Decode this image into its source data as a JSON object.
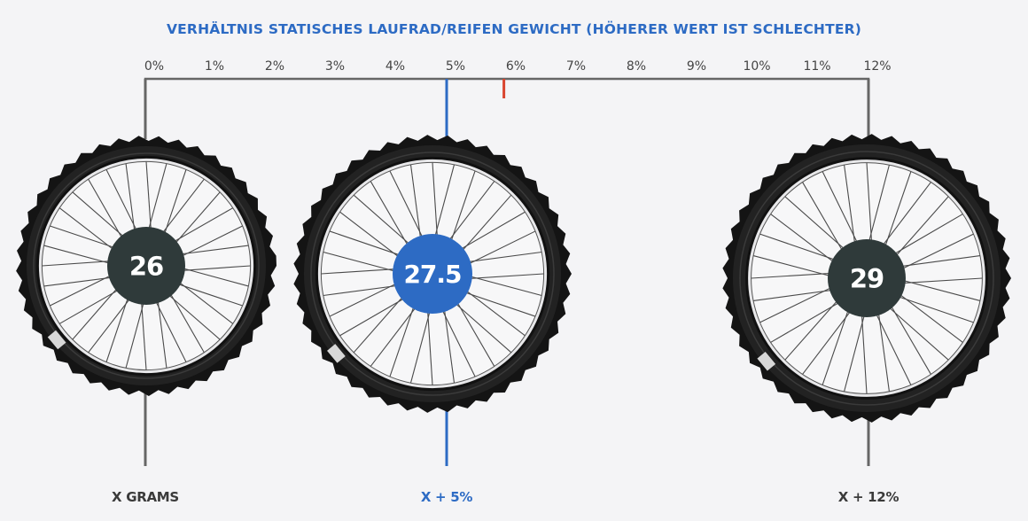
{
  "colors": {
    "background": "#f4f4f6",
    "axis": "#666666",
    "accent_blue": "#2d6bc4",
    "marker_red": "#d9452f",
    "tire": "#141414",
    "hub_dark": "#2f3a3a",
    "label_dark": "#3a3a3a"
  },
  "chart_data": {
    "type": "scatter",
    "title": "VERHÄLTNIS STATISCHES LAUFRAD/REIFEN GEWICHT (HÖHERER WERT IST SCHLECHTER)",
    "xlim": [
      0,
      12
    ],
    "tick_labels": [
      "0%",
      "1%",
      "2%",
      "3%",
      "4%",
      "5%",
      "6%",
      "7%",
      "8%",
      "9%",
      "10%",
      "11%",
      "12%"
    ],
    "marker": {
      "value": 5.95,
      "color": "#d9452f"
    },
    "points": [
      {
        "wheel": "26",
        "value": 0,
        "bottom_label": "X GRAMS",
        "highlight": false
      },
      {
        "wheel": "27.5",
        "value": 5,
        "bottom_label": "X + 5%",
        "highlight": true
      },
      {
        "wheel": "29",
        "value": 12,
        "bottom_label": "X + 12%",
        "highlight": false
      }
    ]
  }
}
